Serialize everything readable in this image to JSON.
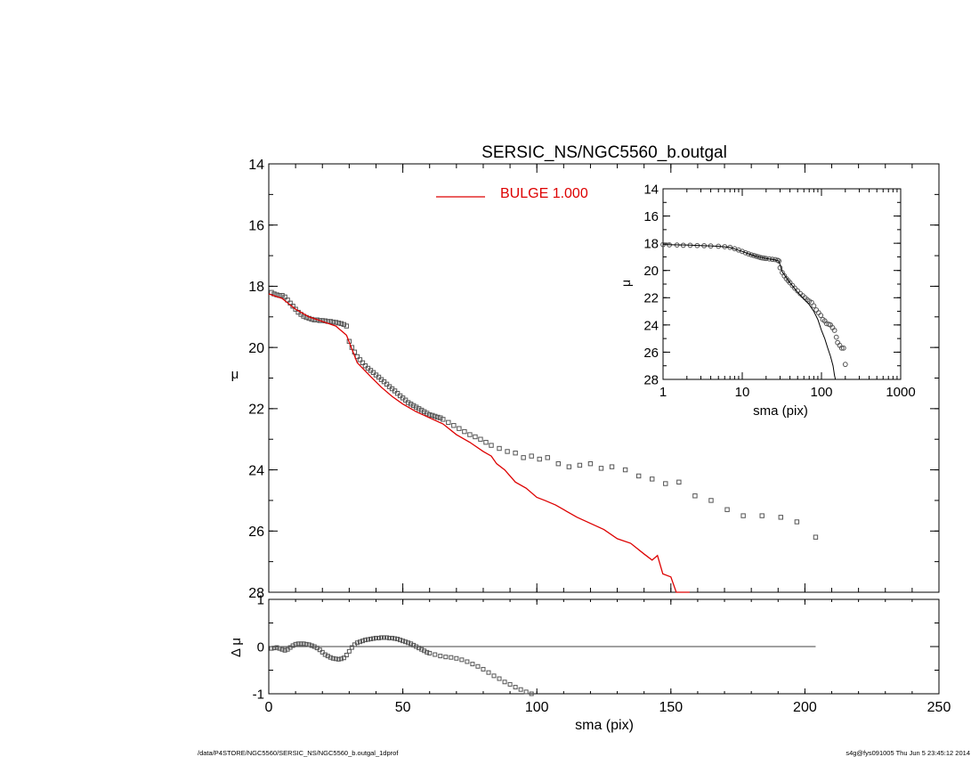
{
  "chart_data": [
    {
      "type": "scatter",
      "title": "SERSIC_NS/NGC5560_b.outgal",
      "xlabel": "",
      "ylabel": "μ",
      "xlim": [
        0,
        250
      ],
      "ylim": [
        28,
        14
      ],
      "y_inverted": true,
      "xticks": [
        "0",
        "50",
        "100",
        "150",
        "200",
        "250"
      ],
      "yticks": [
        "14",
        "16",
        "18",
        "20",
        "22",
        "24",
        "26",
        "28"
      ],
      "grid": false,
      "legend": {
        "placement": "top-center",
        "entries": [
          {
            "label": "BULGE  1.000",
            "color": "#dd0000"
          }
        ]
      },
      "series": [
        {
          "style": "open-squares",
          "color": "#555555",
          "x": [
            1,
            2,
            3,
            4,
            5,
            6,
            7,
            8,
            9,
            10,
            11,
            12,
            13,
            14,
            15,
            16,
            17,
            18,
            19,
            20,
            21,
            22,
            23,
            24,
            25,
            26,
            27,
            28,
            29,
            30,
            31,
            32,
            33,
            34,
            35,
            36,
            37,
            38,
            39,
            40,
            41,
            42,
            43,
            44,
            45,
            46,
            47,
            48,
            49,
            50,
            51,
            52,
            53,
            54,
            55,
            56,
            57,
            58,
            59,
            60,
            61,
            62,
            63,
            64,
            65,
            67,
            69,
            71,
            73,
            75,
            77,
            79,
            81,
            83,
            86,
            89,
            92,
            95,
            98,
            101,
            104,
            108,
            112,
            116,
            120,
            124,
            128,
            133,
            138,
            143,
            148,
            153,
            159,
            165,
            171,
            177,
            184,
            191,
            197,
            204
          ],
          "y": [
            18.2,
            18.25,
            18.28,
            18.3,
            18.3,
            18.35,
            18.45,
            18.55,
            18.65,
            18.75,
            18.85,
            18.92,
            18.98,
            19.02,
            19.05,
            19.08,
            19.1,
            19.1,
            19.12,
            19.12,
            19.13,
            19.15,
            19.15,
            19.17,
            19.18,
            19.2,
            19.22,
            19.25,
            19.3,
            19.8,
            20.0,
            20.15,
            20.3,
            20.4,
            20.5,
            20.6,
            20.68,
            20.75,
            20.82,
            20.9,
            20.97,
            21.05,
            21.12,
            21.2,
            21.28,
            21.35,
            21.42,
            21.5,
            21.58,
            21.65,
            21.72,
            21.8,
            21.85,
            21.9,
            21.95,
            22.0,
            22.05,
            22.1,
            22.15,
            22.2,
            22.22,
            22.25,
            22.28,
            22.3,
            22.35,
            22.45,
            22.55,
            22.65,
            22.75,
            22.85,
            22.92,
            23.0,
            23.1,
            23.2,
            23.3,
            23.4,
            23.45,
            23.6,
            23.55,
            23.65,
            23.6,
            23.8,
            23.9,
            23.85,
            23.8,
            23.95,
            23.9,
            24.0,
            24.2,
            24.3,
            24.45,
            24.4,
            24.85,
            25.0,
            25.3,
            25.5,
            25.5,
            25.55,
            25.7,
            26.2
          ]
        },
        {
          "style": "line",
          "name": "BULGE  1.000",
          "color": "#dd0000",
          "x": [
            0,
            5,
            10,
            15,
            20,
            25,
            29,
            33,
            38,
            42,
            46,
            50,
            55,
            60,
            65,
            70,
            75,
            80,
            83,
            85,
            88,
            92,
            96,
            100,
            103,
            107,
            110,
            115,
            120,
            125,
            130,
            135,
            140,
            143,
            145,
            147,
            150,
            152,
            154,
            157
          ],
          "y": [
            18.25,
            18.4,
            18.75,
            19.0,
            19.15,
            19.3,
            19.6,
            20.5,
            20.95,
            21.3,
            21.6,
            21.85,
            22.1,
            22.3,
            22.5,
            22.85,
            23.1,
            23.4,
            23.55,
            23.8,
            24.0,
            24.4,
            24.6,
            24.9,
            25.0,
            25.15,
            25.3,
            25.55,
            25.75,
            25.95,
            26.25,
            26.4,
            26.75,
            26.95,
            26.8,
            27.4,
            27.5,
            28.0,
            28.0,
            28.1
          ]
        }
      ]
    },
    {
      "type": "scatter",
      "title": "",
      "xlabel": "sma (pix)",
      "ylabel": "Δ μ",
      "xlim": [
        0,
        250
      ],
      "ylim": [
        -1,
        1
      ],
      "xticks": [
        "0",
        "50",
        "100",
        "150",
        "200",
        "250"
      ],
      "yticks": [
        "1",
        "0",
        "-1"
      ],
      "grid": false,
      "zero_line": {
        "x": [
          0,
          204
        ],
        "y": 0
      },
      "series": [
        {
          "style": "open-squares",
          "color": "#555555",
          "x": [
            1,
            2,
            3,
            4,
            5,
            6,
            7,
            8,
            9,
            10,
            11,
            12,
            13,
            14,
            15,
            16,
            17,
            18,
            19,
            20,
            21,
            22,
            23,
            24,
            25,
            26,
            27,
            28,
            29,
            30,
            31,
            32,
            33,
            34,
            35,
            36,
            37,
            38,
            39,
            40,
            41,
            42,
            43,
            44,
            45,
            46,
            47,
            48,
            49,
            50,
            51,
            52,
            53,
            54,
            55,
            56,
            57,
            58,
            59,
            60,
            62,
            64,
            66,
            68,
            70,
            72,
            74,
            76,
            78,
            80,
            82,
            84,
            86,
            88,
            90,
            92,
            94,
            96,
            98
          ],
          "y": [
            -0.04,
            -0.03,
            -0.02,
            -0.04,
            -0.06,
            -0.08,
            -0.06,
            -0.02,
            0.02,
            0.05,
            0.06,
            0.06,
            0.06,
            0.05,
            0.04,
            0.02,
            0.0,
            -0.03,
            -0.07,
            -0.12,
            -0.17,
            -0.2,
            -0.23,
            -0.25,
            -0.26,
            -0.27,
            -0.26,
            -0.24,
            -0.18,
            -0.1,
            -0.02,
            0.04,
            0.08,
            0.1,
            0.12,
            0.14,
            0.15,
            0.16,
            0.17,
            0.18,
            0.18,
            0.19,
            0.19,
            0.19,
            0.18,
            0.18,
            0.17,
            0.16,
            0.14,
            0.12,
            0.1,
            0.08,
            0.06,
            0.03,
            0.0,
            -0.03,
            -0.06,
            -0.09,
            -0.12,
            -0.14,
            -0.17,
            -0.2,
            -0.22,
            -0.23,
            -0.25,
            -0.28,
            -0.32,
            -0.37,
            -0.42,
            -0.48,
            -0.55,
            -0.62,
            -0.68,
            -0.75,
            -0.8,
            -0.86,
            -0.91,
            -0.96,
            -1.0
          ]
        }
      ]
    },
    {
      "type": "scatter",
      "title": "",
      "xlabel": "sma (pix)",
      "ylabel": "μ",
      "x_scale": "log",
      "xlim": [
        1,
        1000
      ],
      "ylim": [
        28,
        14
      ],
      "y_inverted": true,
      "xticks": [
        "1",
        "10",
        "100",
        "1000"
      ],
      "yticks": [
        "14",
        "16",
        "18",
        "20",
        "22",
        "24",
        "26",
        "28"
      ],
      "grid": false,
      "series": [
        {
          "style": "open-circles",
          "color": "#555555",
          "x": [
            1,
            1.2,
            1.5,
            1.8,
            2.2,
            2.7,
            3.3,
            4,
            5,
            6,
            7,
            8,
            9,
            10,
            11,
            12,
            13,
            14,
            15,
            16,
            17,
            18,
            19,
            20,
            22,
            24,
            26,
            28,
            29,
            30,
            32,
            34,
            36,
            38,
            40,
            43,
            46,
            50,
            54,
            58,
            62,
            66,
            70,
            75,
            80,
            86,
            92,
            98,
            104,
            110,
            116,
            124,
            130,
            138,
            146,
            154,
            160,
            170,
            180,
            190,
            200
          ],
          "y": [
            18.1,
            18.12,
            18.13,
            18.15,
            18.15,
            18.17,
            18.18,
            18.2,
            18.22,
            18.25,
            18.3,
            18.4,
            18.5,
            18.6,
            18.7,
            18.78,
            18.85,
            18.9,
            18.95,
            19.0,
            19.05,
            19.08,
            19.1,
            19.12,
            19.15,
            19.18,
            19.2,
            19.25,
            19.3,
            19.8,
            20.15,
            20.4,
            20.6,
            20.75,
            20.9,
            21.1,
            21.3,
            21.5,
            21.7,
            21.85,
            22.0,
            22.15,
            22.25,
            22.35,
            22.6,
            22.9,
            23.1,
            23.3,
            23.6,
            23.7,
            23.9,
            23.95,
            24.0,
            24.2,
            24.4,
            24.9,
            25.3,
            25.5,
            25.7,
            25.7,
            26.9
          ]
        },
        {
          "style": "line",
          "color": "#000000",
          "x": [
            1,
            2,
            3,
            5,
            7,
            10,
            13,
            16,
            20,
            25,
            29,
            32,
            40,
            50,
            60,
            70,
            80,
            90,
            100,
            110,
            120,
            130,
            140,
            146,
            150
          ],
          "y": [
            18.1,
            18.13,
            18.17,
            18.22,
            18.3,
            18.6,
            18.85,
            19.0,
            19.12,
            19.2,
            19.3,
            20.1,
            20.9,
            21.6,
            22.1,
            22.5,
            23.0,
            23.6,
            24.4,
            25.0,
            25.7,
            26.3,
            27.0,
            27.7,
            28.0
          ]
        }
      ]
    }
  ],
  "footer": {
    "left": "/data/P4STORE/NGC5560/SERSIC_NS/NGC5560_b.outgal_1dprof",
    "right": "s4g@fys091005  Thu Jun  5 23:45:12 2014"
  }
}
